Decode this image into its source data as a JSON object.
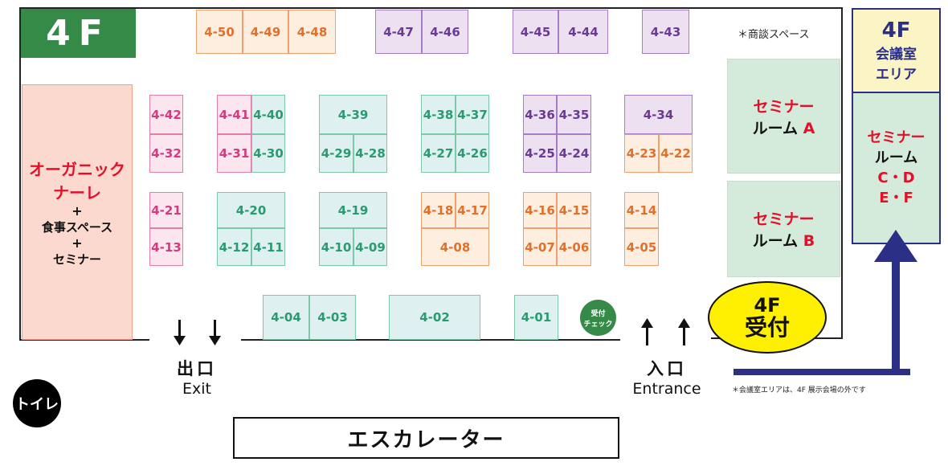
{
  "floor_label": "4F",
  "booth_colors": {
    "orange": {
      "text": "#e0702a",
      "fill": "#fdeee0",
      "border": "#f0a070"
    },
    "purple": {
      "text": "#6a3a96",
      "fill": "#ede0f0",
      "border": "#a67cc6"
    },
    "green": {
      "text": "#2a9a70",
      "fill": "#dff0f0",
      "border": "#7cc8a8"
    },
    "pink": {
      "text": "#d43a80",
      "fill": "#fbe6ef",
      "border": "#e080a8"
    }
  },
  "booths": [
    {
      "id": "4-50",
      "color": "orange"
    },
    {
      "id": "4-49",
      "color": "orange"
    },
    {
      "id": "4-48",
      "color": "orange"
    },
    {
      "id": "4-47",
      "color": "purple"
    },
    {
      "id": "4-46",
      "color": "purple"
    },
    {
      "id": "4-45",
      "color": "purple"
    },
    {
      "id": "4-44",
      "color": "purple"
    },
    {
      "id": "4-43",
      "color": "purple"
    },
    {
      "id": "4-42",
      "color": "pink"
    },
    {
      "id": "4-32",
      "color": "pink"
    },
    {
      "id": "4-41",
      "color": "pink"
    },
    {
      "id": "4-40",
      "color": "green"
    },
    {
      "id": "4-31",
      "color": "pink"
    },
    {
      "id": "4-30",
      "color": "green"
    },
    {
      "id": "4-39",
      "color": "green"
    },
    {
      "id": "4-29",
      "color": "green"
    },
    {
      "id": "4-28",
      "color": "green"
    },
    {
      "id": "4-38",
      "color": "green"
    },
    {
      "id": "4-37",
      "color": "green"
    },
    {
      "id": "4-27",
      "color": "green"
    },
    {
      "id": "4-26",
      "color": "green"
    },
    {
      "id": "4-36",
      "color": "purple"
    },
    {
      "id": "4-35",
      "color": "purple"
    },
    {
      "id": "4-25",
      "color": "purple"
    },
    {
      "id": "4-24",
      "color": "purple"
    },
    {
      "id": "4-34",
      "color": "purple"
    },
    {
      "id": "4-23",
      "color": "orange"
    },
    {
      "id": "4-22",
      "color": "orange"
    },
    {
      "id": "4-21",
      "color": "pink"
    },
    {
      "id": "4-13",
      "color": "pink"
    },
    {
      "id": "4-20",
      "color": "green"
    },
    {
      "id": "4-12",
      "color": "green"
    },
    {
      "id": "4-11",
      "color": "green"
    },
    {
      "id": "4-19",
      "color": "green"
    },
    {
      "id": "4-10",
      "color": "green"
    },
    {
      "id": "4-09",
      "color": "green"
    },
    {
      "id": "4-18",
      "color": "orange"
    },
    {
      "id": "4-17",
      "color": "orange"
    },
    {
      "id": "4-08",
      "color": "orange"
    },
    {
      "id": "4-16",
      "color": "orange"
    },
    {
      "id": "4-15",
      "color": "orange"
    },
    {
      "id": "4-07",
      "color": "orange"
    },
    {
      "id": "4-06",
      "color": "orange"
    },
    {
      "id": "4-14",
      "color": "orange"
    },
    {
      "id": "4-05",
      "color": "orange"
    },
    {
      "id": "4-04",
      "color": "green"
    },
    {
      "id": "4-03",
      "color": "green"
    },
    {
      "id": "4-02",
      "color": "green"
    },
    {
      "id": "4-01",
      "color": "green"
    }
  ],
  "organic": {
    "title_line1": "オーガニック",
    "title_line2": "ナーレ",
    "plus": "+",
    "line3": "食事スペース",
    "line4": "セミナー"
  },
  "business_space": "＊商談スペース",
  "seminar_a": {
    "line1": "セミナー",
    "line2": "ルーム",
    "letter": "A"
  },
  "seminar_b": {
    "line1": "セミナー",
    "line2": "ルーム",
    "letter": "B"
  },
  "meeting_area": {
    "floor": "4F",
    "line1": "会議室",
    "line2": "エリア"
  },
  "seminar_cdef": {
    "line1": "セミナー",
    "line2": "ルーム",
    "line3": "C・D",
    "line4": "E・F"
  },
  "reception_check": {
    "line1": "受付",
    "line2": "チェック"
  },
  "reception": {
    "line1": "4F",
    "line2": "受付"
  },
  "exit": {
    "ja": "出口",
    "en": "Exit"
  },
  "entrance": {
    "ja": "入口",
    "en": "Entrance"
  },
  "meeting_note": "＊会議室エリアは、4F 展示会場の外です",
  "toilet": "トイレ",
  "escalator": "エスカレーター",
  "colors": {
    "floor_green": "#358a48",
    "navy": "#2b2f86",
    "yellow": "#ffef00",
    "organic_fill": "#fbd9cf",
    "seminar_fill": "#d4eadb"
  }
}
